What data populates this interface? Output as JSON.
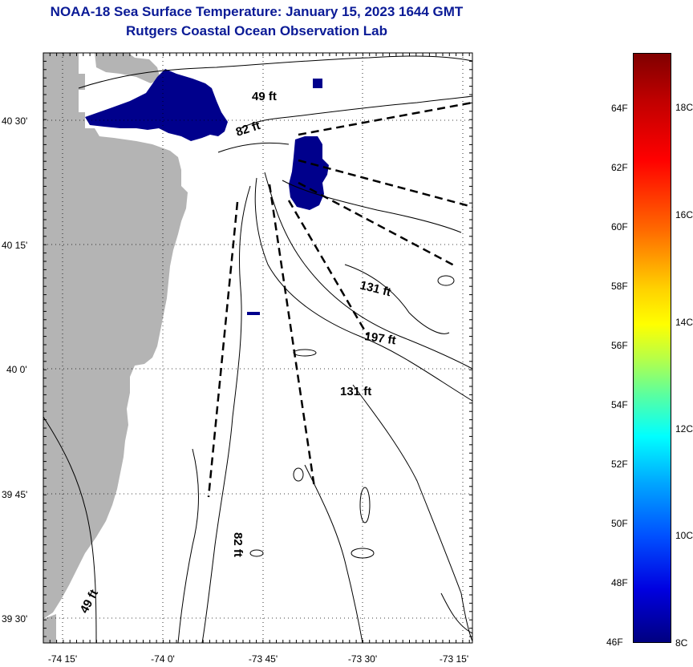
{
  "header": {
    "title": "NOAA-18 Sea Surface Temperature:  January 15, 2023 1644 GMT",
    "subtitle": "Rutgers Coastal Ocean Observation Lab"
  },
  "map": {
    "lat_labels": [
      "40 30'",
      "40 15'",
      "40 0'",
      "39 45'",
      "39 30'"
    ],
    "lon_labels": [
      "-74 15'",
      "-74 0'",
      "-73 45'",
      "-73 30'",
      "-73 15'"
    ],
    "contour_labels": [
      "49 ft",
      "82 ft",
      "131 ft",
      "197 ft",
      "131 ft",
      "82 ft",
      "49 ft"
    ],
    "colors": {
      "land": "#b4b4b4",
      "cold_sst": "#00008c",
      "frame": "#000000"
    }
  },
  "colorbar": {
    "fahrenheit_labels": [
      "64F",
      "62F",
      "60F",
      "58F",
      "56F",
      "54F",
      "52F",
      "50F",
      "48F",
      "46F"
    ],
    "celsius_labels": [
      "18C",
      "16C",
      "14C",
      "12C",
      "10C",
      "8C"
    ]
  }
}
